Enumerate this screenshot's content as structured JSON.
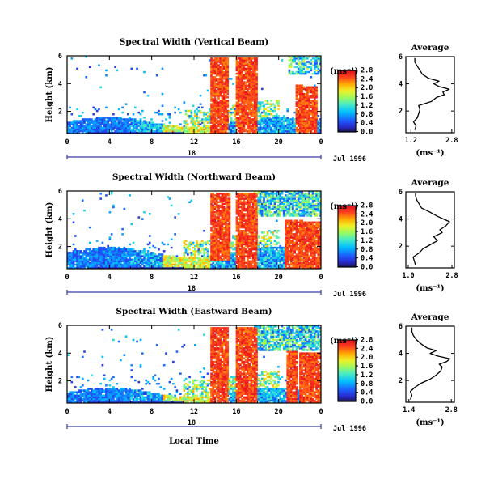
{
  "chart_data": [
    {
      "type": "heatmap",
      "title": "Spectral Width (Vertical Beam)",
      "ylabel": "Height (km)",
      "xlabel": "",
      "x_ticks": [
        "0",
        "4",
        "8",
        "12",
        "16",
        "20",
        "0"
      ],
      "y_ticks": [
        "2",
        "4",
        "6"
      ],
      "xlim": [
        0,
        24
      ],
      "ylim": [
        0.4,
        6
      ],
      "date_tick": "18",
      "date_label": "Jul 1996",
      "colorbar": {
        "unit": "(ms⁻¹)",
        "ticks": [
          "0.0",
          "0.4",
          "0.8",
          "1.2",
          "1.6",
          "2.0",
          "2.4",
          "2.8"
        ],
        "range": [
          0,
          2.8
        ]
      },
      "average": {
        "title": "Average",
        "xlabel": "(ms⁻¹)",
        "x_ticks": [
          "1.2",
          "2.8"
        ],
        "xlim": [
          1.0,
          2.9
        ],
        "y_ticks": [
          "2",
          "4",
          "6"
        ],
        "profile": [
          [
            0.6,
            1.35
          ],
          [
            0.9,
            1.4
          ],
          [
            1.2,
            1.3
          ],
          [
            1.5,
            1.45
          ],
          [
            1.8,
            1.5
          ],
          [
            2.1,
            1.55
          ],
          [
            2.4,
            1.5
          ],
          [
            2.7,
            2.0
          ],
          [
            3.0,
            2.2
          ],
          [
            3.2,
            2.5
          ],
          [
            3.4,
            2.45
          ],
          [
            3.6,
            2.7
          ],
          [
            3.8,
            2.3
          ],
          [
            4.0,
            2.1
          ],
          [
            4.2,
            2.3
          ],
          [
            4.4,
            1.9
          ],
          [
            4.7,
            1.65
          ],
          [
            5.0,
            1.55
          ],
          [
            5.3,
            1.45
          ],
          [
            5.6,
            1.35
          ],
          [
            5.9,
            1.35
          ]
        ]
      }
    },
    {
      "type": "heatmap",
      "title": "Spectral Width (Northward Beam)",
      "ylabel": "Height (km)",
      "xlabel": "",
      "x_ticks": [
        "0",
        "4",
        "8",
        "12",
        "16",
        "20",
        "0"
      ],
      "y_ticks": [
        "2",
        "4",
        "6"
      ],
      "xlim": [
        0,
        24
      ],
      "ylim": [
        0.4,
        6
      ],
      "date_tick": "18",
      "date_label": "Jul 1996",
      "colorbar": {
        "unit": "(ms⁻¹)",
        "ticks": [
          "0.0",
          "0.4",
          "0.8",
          "1.2",
          "1.6",
          "2.0",
          "2.4",
          "2.8"
        ],
        "range": [
          0,
          2.8
        ]
      },
      "average": {
        "title": "Average",
        "xlabel": "(ms⁻¹)",
        "x_ticks": [
          "1.0",
          "2.8"
        ],
        "xlim": [
          0.9,
          2.9
        ],
        "y_ticks": [
          "2",
          "4",
          "6"
        ],
        "profile": [
          [
            0.6,
            1.3
          ],
          [
            0.9,
            1.25
          ],
          [
            1.2,
            1.2
          ],
          [
            1.5,
            1.45
          ],
          [
            1.8,
            1.6
          ],
          [
            2.1,
            1.9
          ],
          [
            2.4,
            2.2
          ],
          [
            2.7,
            2.05
          ],
          [
            3.0,
            2.4
          ],
          [
            3.2,
            2.3
          ],
          [
            3.5,
            2.55
          ],
          [
            3.8,
            2.7
          ],
          [
            4.0,
            2.45
          ],
          [
            4.2,
            2.2
          ],
          [
            4.5,
            1.9
          ],
          [
            4.8,
            1.55
          ],
          [
            5.1,
            1.45
          ],
          [
            5.4,
            1.35
          ],
          [
            5.7,
            1.3
          ],
          [
            5.9,
            1.3
          ]
        ]
      }
    },
    {
      "type": "heatmap",
      "title": "Spectral Width (Eastward Beam)",
      "ylabel": "Height (km)",
      "xlabel": "Local Time",
      "x_ticks": [
        "0",
        "4",
        "8",
        "12",
        "16",
        "20",
        "0"
      ],
      "y_ticks": [
        "2",
        "4",
        "6"
      ],
      "xlim": [
        0,
        24
      ],
      "ylim": [
        0.4,
        6
      ],
      "date_tick": "18",
      "date_label": "Jul 1996",
      "colorbar": {
        "unit": "(ms⁻¹)",
        "ticks": [
          "0.0",
          "0.4",
          "0.8",
          "1.2",
          "1.6",
          "2.0",
          "2.4",
          "2.8"
        ],
        "range": [
          0,
          2.8
        ]
      },
      "average": {
        "title": "Average",
        "xlabel": "(ms⁻¹)",
        "x_ticks": [
          "1.4",
          "2.8"
        ],
        "xlim": [
          1.3,
          2.9
        ],
        "y_ticks": [
          "2",
          "4",
          "6"
        ],
        "profile": [
          [
            0.6,
            1.45
          ],
          [
            0.9,
            1.5
          ],
          [
            1.2,
            1.45
          ],
          [
            1.5,
            1.6
          ],
          [
            1.8,
            1.8
          ],
          [
            2.1,
            2.1
          ],
          [
            2.4,
            2.3
          ],
          [
            2.7,
            2.45
          ],
          [
            3.0,
            2.5
          ],
          [
            3.2,
            2.4
          ],
          [
            3.4,
            2.65
          ],
          [
            3.6,
            2.75
          ],
          [
            3.8,
            2.35
          ],
          [
            4.0,
            2.1
          ],
          [
            4.2,
            2.3
          ],
          [
            4.4,
            2.0
          ],
          [
            4.7,
            1.8
          ],
          [
            5.0,
            1.65
          ],
          [
            5.3,
            1.55
          ],
          [
            5.6,
            1.5
          ],
          [
            5.9,
            1.5
          ]
        ]
      }
    }
  ]
}
